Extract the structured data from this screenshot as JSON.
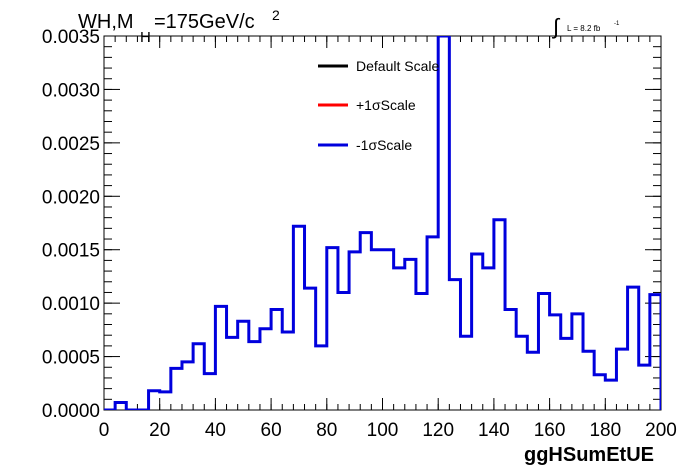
{
  "chart_data": {
    "type": "histogram",
    "title_main": "WH,M",
    "title_sub": "H",
    "title_rest": "=175GeV/c",
    "title_sup": "2",
    "lumi": {
      "integral_symbol": "∫",
      "text": "L = 8.2 fb",
      "sup": "-1"
    },
    "xlabel": "ggHSumEtUE",
    "ylabel": "",
    "xlim": [
      0,
      200
    ],
    "ylim": [
      0,
      0.0035
    ],
    "x_ticks": [
      "0",
      "20",
      "40",
      "60",
      "80",
      "100",
      "120",
      "140",
      "160",
      "180",
      "200"
    ],
    "x_tick_values": [
      0,
      20,
      40,
      60,
      80,
      100,
      120,
      140,
      160,
      180,
      200
    ],
    "y_ticks": [
      "0.0000",
      "0.0005",
      "0.0010",
      "0.0015",
      "0.0020",
      "0.0025",
      "0.0030",
      "0.0035"
    ],
    "y_tick_values": [
      0,
      0.0005,
      0.001,
      0.0015,
      0.002,
      0.0025,
      0.003,
      0.0035
    ],
    "bin_edges_start": 0,
    "bin_width": 4,
    "legend": [
      {
        "label": "Default Scale",
        "color": "#000000"
      },
      {
        "label": "+1σScale",
        "color": "#ff0000"
      },
      {
        "label": "-1σScale",
        "color": "#0000dd"
      }
    ],
    "series": [
      {
        "name": "-1σScale",
        "color": "#0000dd",
        "values": [
          0.0,
          7e-05,
          0.0,
          0.0,
          0.00018,
          0.00017,
          0.00039,
          0.00045,
          0.00062,
          0.00034,
          0.00097,
          0.00068,
          0.00083,
          0.00064,
          0.00076,
          0.00094,
          0.00073,
          0.00172,
          0.00114,
          0.0006,
          0.00152,
          0.0011,
          0.00148,
          0.00166,
          0.0015,
          0.0015,
          0.00133,
          0.00141,
          0.00109,
          0.00162,
          0.0035,
          0.00122,
          0.00069,
          0.00146,
          0.00133,
          0.00178,
          0.00094,
          0.00069,
          0.00054,
          0.00109,
          0.00089,
          0.00067,
          0.0009,
          0.00055,
          0.00033,
          0.00028,
          0.00057,
          0.00115,
          0.00042,
          0.00108
        ]
      }
    ]
  }
}
